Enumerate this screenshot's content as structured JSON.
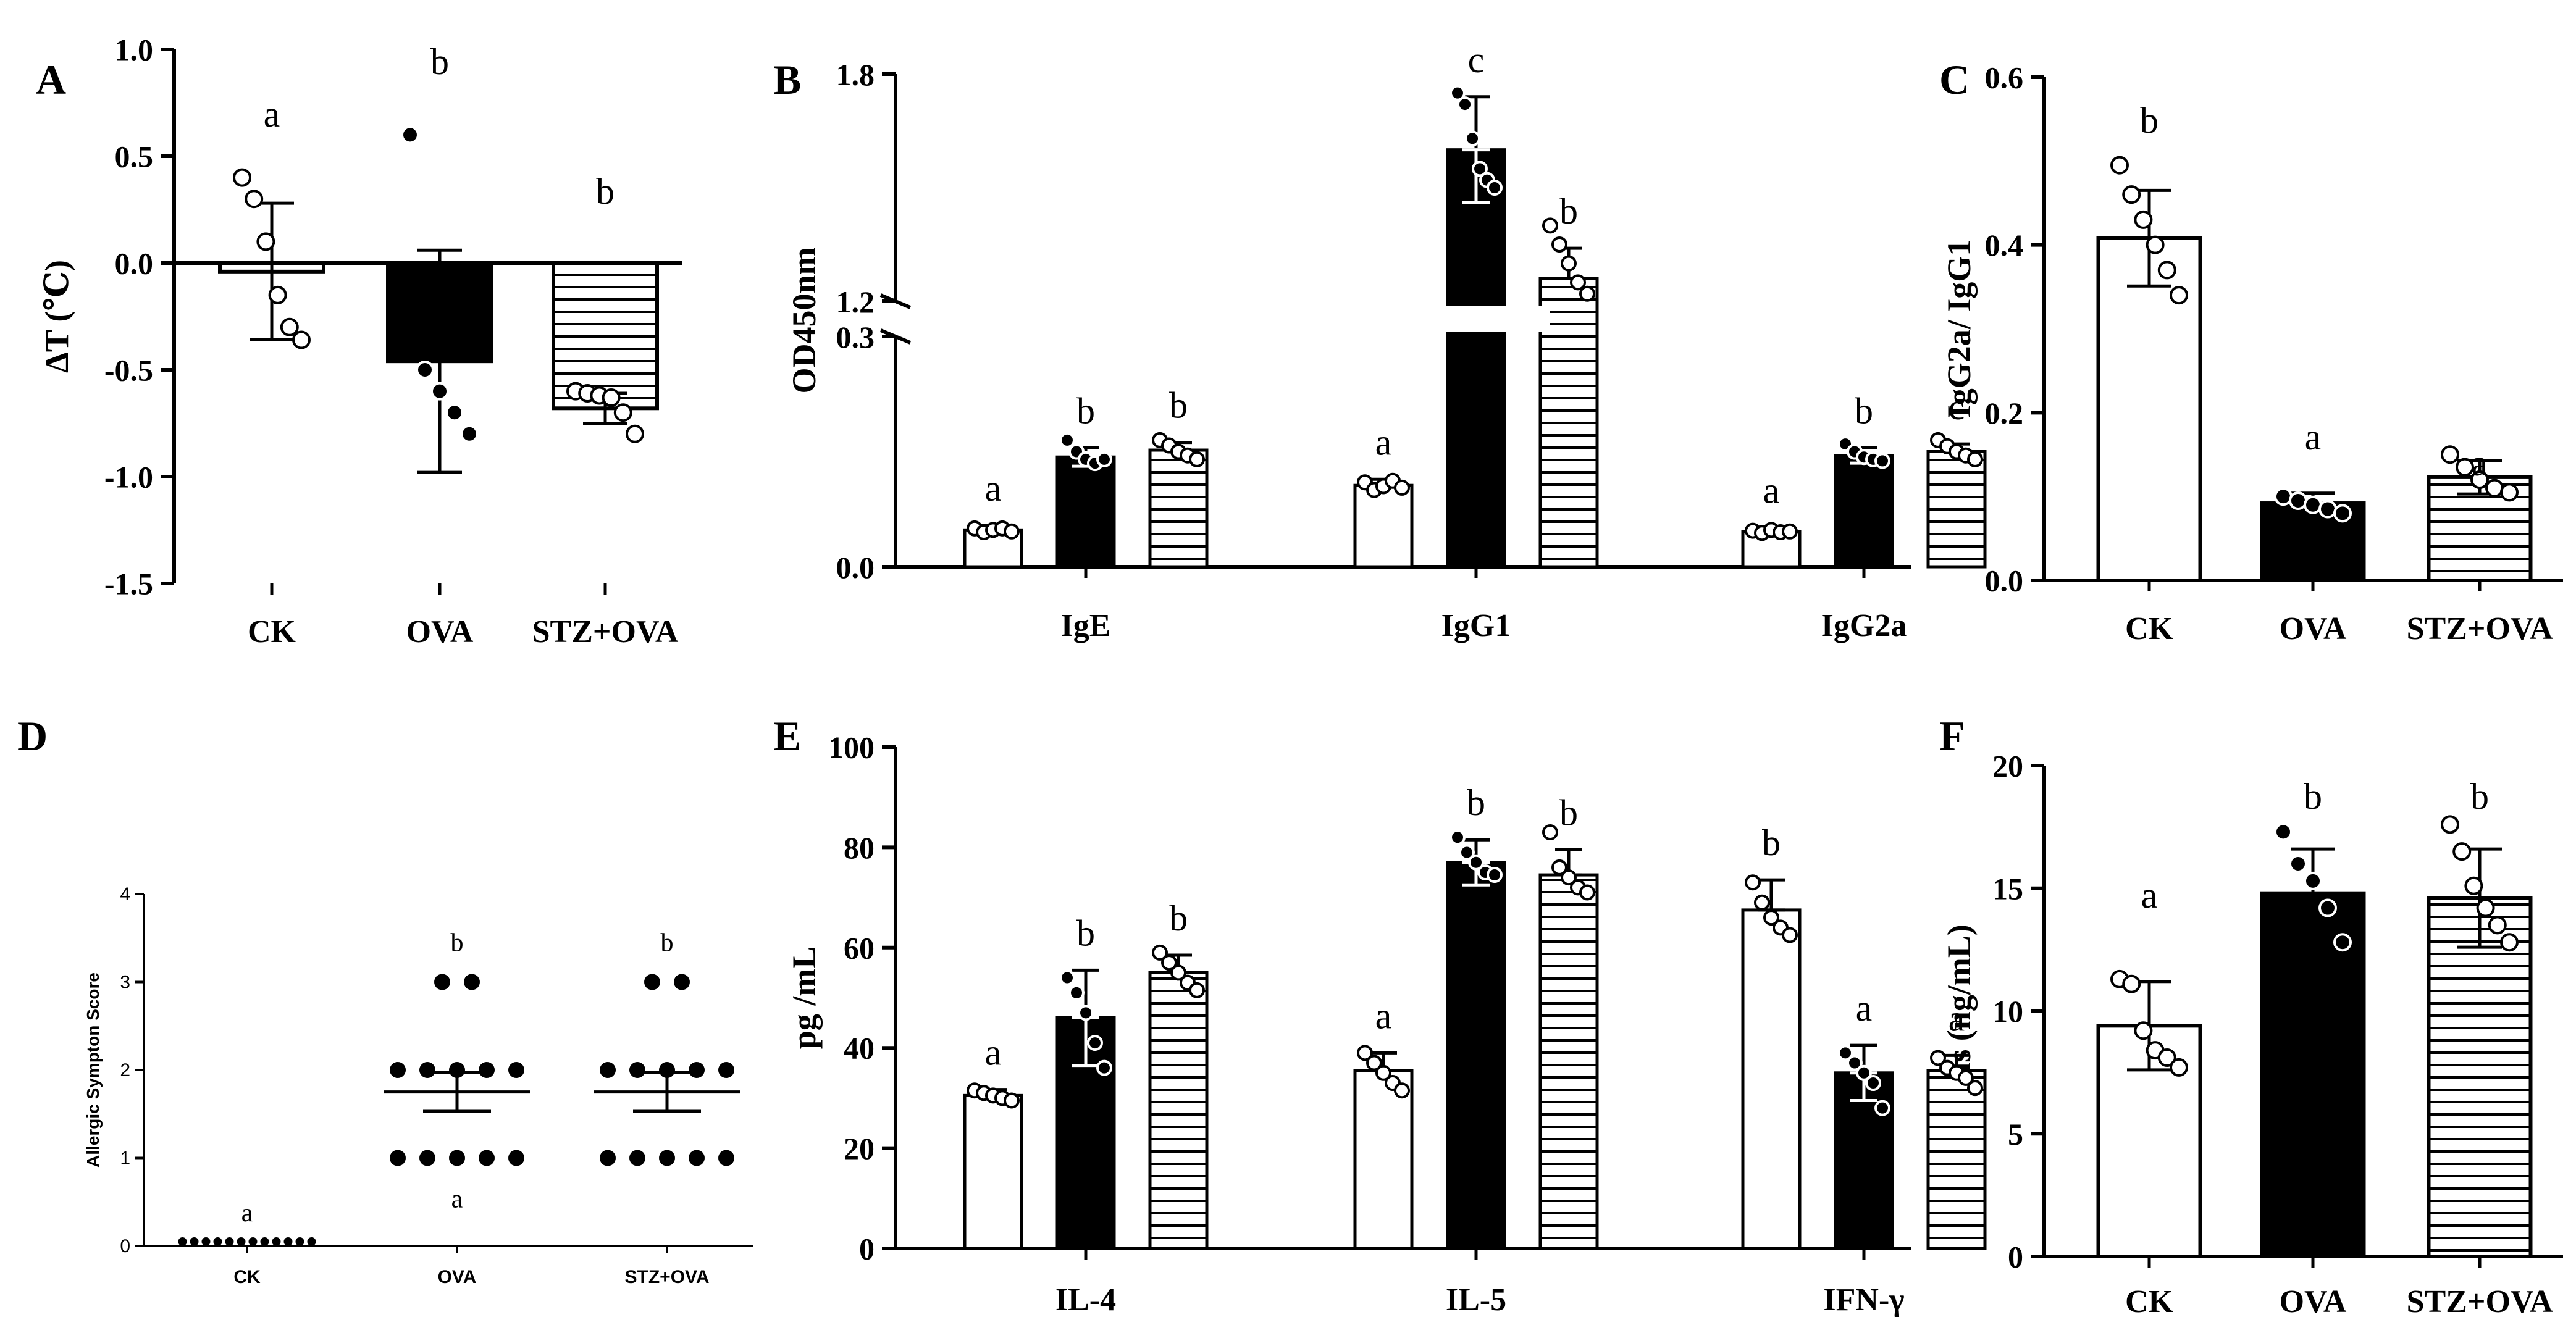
{
  "chart_data": [
    {
      "panel": "A",
      "type": "bar",
      "ylabel": "ΔT (℃)",
      "ylim": [
        -1.5,
        1.0
      ],
      "yticks": [
        "1.0",
        "0.5",
        "0.0",
        "-0.5",
        "-1.0",
        "-1.5"
      ],
      "yticks_values": [
        1.0,
        0.5,
        0.0,
        -0.5,
        -1.0,
        -1.5
      ],
      "categories": [
        "CK",
        "OVA",
        "STZ+OVA"
      ],
      "fills": [
        "white",
        "black",
        "hatch"
      ],
      "values": [
        -0.04,
        -0.46,
        -0.68
      ],
      "errors": [
        0.32,
        0.52,
        0.07
      ],
      "letters": [
        "a",
        "b",
        "b"
      ],
      "points": [
        [
          0.4,
          0.3,
          0.1,
          -0.15,
          -0.3,
          -0.36
        ],
        [
          0.6,
          -0.5,
          -0.6,
          -0.7,
          -0.8
        ],
        [
          -0.6,
          -0.61,
          -0.62,
          -0.63,
          -0.7,
          -0.8
        ]
      ]
    },
    {
      "panel": "B",
      "type": "bar",
      "ylabel": "OD450nm",
      "broken_axis": {
        "lower": [
          0.0,
          0.3
        ],
        "upper": [
          1.2,
          1.8
        ]
      },
      "yticks": [
        "1.8",
        "1.2",
        "0.3",
        "0.0"
      ],
      "yticks_values": [
        1.8,
        1.2,
        0.3,
        0.0
      ],
      "categories": [
        "IgE",
        "IgG1",
        "IgG2a"
      ],
      "series": [
        {
          "fill": "white",
          "values": [
            0.048,
            0.106,
            0.046
          ],
          "errors": [
            0.006,
            0.008,
            0.005
          ],
          "letters": [
            "a",
            "a",
            "a"
          ],
          "points": [
            [
              0.05,
              0.045,
              0.048,
              0.05,
              0.046
            ],
            [
              0.11,
              0.1,
              0.105,
              0.112,
              0.103
            ],
            [
              0.047,
              0.044,
              0.048,
              0.045,
              0.046
            ]
          ]
        },
        {
          "fill": "black",
          "values": [
            0.143,
            1.6,
            0.145
          ],
          "errors": [
            0.012,
            0.14,
            0.01
          ],
          "letters": [
            "b",
            "c",
            "b"
          ],
          "points": [
            [
              0.165,
              0.15,
              0.14,
              0.135,
              0.14
            ],
            [
              1.75,
              1.72,
              1.63,
              1.55,
              1.52,
              1.5
            ],
            [
              0.16,
              0.15,
              0.143,
              0.14,
              0.138
            ]
          ]
        },
        {
          "fill": "hatch",
          "values": [
            0.152,
            1.26,
            0.15
          ],
          "errors": [
            0.01,
            0.08,
            0.01
          ],
          "letters": [
            "b",
            "b",
            "c"
          ],
          "points": [
            [
              0.165,
              0.158,
              0.15,
              0.145,
              0.14
            ],
            [
              1.4,
              1.35,
              1.3,
              1.25,
              1.22
            ],
            [
              0.165,
              0.157,
              0.15,
              0.145,
              0.14
            ]
          ]
        }
      ]
    },
    {
      "panel": "C",
      "type": "bar",
      "ylabel": "IgG2a/ IgG1",
      "ylim": [
        0.0,
        0.6
      ],
      "yticks": [
        "0.6",
        "0.4",
        "0.2",
        "0.0"
      ],
      "yticks_values": [
        0.6,
        0.4,
        0.2,
        0.0
      ],
      "categories": [
        "CK",
        "OVA",
        "STZ+OVA"
      ],
      "fills": [
        "white",
        "black",
        "hatch"
      ],
      "values": [
        0.408,
        0.092,
        0.123
      ],
      "errors": [
        0.057,
        0.012,
        0.02
      ],
      "letters": [
        "b",
        "a",
        "a"
      ],
      "points": [
        [
          0.495,
          0.46,
          0.43,
          0.4,
          0.37,
          0.34
        ],
        [
          0.1,
          0.095,
          0.09,
          0.085,
          0.08
        ],
        [
          0.15,
          0.135,
          0.12,
          0.11,
          0.105
        ]
      ]
    },
    {
      "panel": "D",
      "type": "scatter",
      "ylabel": "Allergic Sympton Score",
      "ylim": [
        0,
        4
      ],
      "yticks": [
        "4",
        "3",
        "2",
        "1",
        "0"
      ],
      "yticks_values": [
        4,
        3,
        2,
        1,
        0
      ],
      "categories": [
        "CK",
        "OVA",
        "STZ+OVA"
      ],
      "means": [
        0.0,
        1.75,
        1.75
      ],
      "sems": [
        0.0,
        0.22,
        0.22
      ],
      "letters_upper": [
        "a",
        "b",
        "b"
      ],
      "letters_lower": [
        "",
        "a",
        ""
      ],
      "counts": [
        [
          12,
          0,
          0,
          0
        ],
        [
          0,
          5,
          5,
          2
        ],
        [
          0,
          5,
          5,
          2
        ]
      ]
    },
    {
      "panel": "E",
      "type": "bar",
      "ylabel": "pg /mL",
      "ylim": [
        0,
        100
      ],
      "yticks": [
        "100",
        "80",
        "60",
        "40",
        "20",
        "0"
      ],
      "yticks_values": [
        100,
        80,
        60,
        40,
        20,
        0
      ],
      "categories": [
        "IL-4",
        "IL-5",
        "IFN-γ"
      ],
      "series": [
        {
          "fill": "white",
          "values": [
            30.5,
            35.5,
            67.5
          ],
          "errors": [
            1.2,
            3.5,
            6.0
          ],
          "letters": [
            "a",
            "a",
            "b"
          ],
          "points": [
            [
              31.5,
              31,
              30.5,
              30,
              29.5
            ],
            [
              39,
              37,
              35,
              33,
              31.5
            ],
            [
              73,
              69,
              66,
              64,
              62.5
            ]
          ]
        },
        {
          "fill": "black",
          "values": [
            46,
            77,
            35
          ],
          "errors": [
            9.5,
            4.5,
            5.5
          ],
          "letters": [
            "b",
            "b",
            "a"
          ],
          "points": [
            [
              54,
              51,
              47,
              41,
              36
            ],
            [
              82,
              79,
              77,
              75,
              74.5
            ],
            [
              39,
              37,
              35,
              33,
              28
            ]
          ]
        },
        {
          "fill": "hatch",
          "values": [
            55,
            74.5,
            35.5
          ],
          "errors": [
            3.5,
            5.0,
            3.0
          ],
          "letters": [
            "b",
            "b",
            "a"
          ],
          "points": [
            [
              59,
              57,
              55,
              53,
              51.5
            ],
            [
              83,
              76,
              74,
              72,
              71
            ],
            [
              38,
              36,
              35,
              34,
              32
            ]
          ]
        }
      ]
    },
    {
      "panel": "F",
      "type": "bar",
      "ylabel": "His (ng/mL)",
      "ylim": [
        0,
        20
      ],
      "yticks": [
        "20",
        "15",
        "10",
        "5",
        "0"
      ],
      "yticks_values": [
        20,
        15,
        10,
        5,
        0
      ],
      "categories": [
        "CK",
        "OVA",
        "STZ+OVA"
      ],
      "fills": [
        "white",
        "black",
        "hatch"
      ],
      "values": [
        9.4,
        14.8,
        14.6
      ],
      "errors": [
        1.8,
        1.8,
        2.0
      ],
      "letters": [
        "a",
        "b",
        "b"
      ],
      "points": [
        [
          11.3,
          11.1,
          9.2,
          8.4,
          8.1,
          7.7
        ],
        [
          17.3,
          16.0,
          15.3,
          14.2,
          12.8
        ],
        [
          17.6,
          16.5,
          15.1,
          14.2,
          13.5,
          12.8
        ]
      ]
    }
  ]
}
